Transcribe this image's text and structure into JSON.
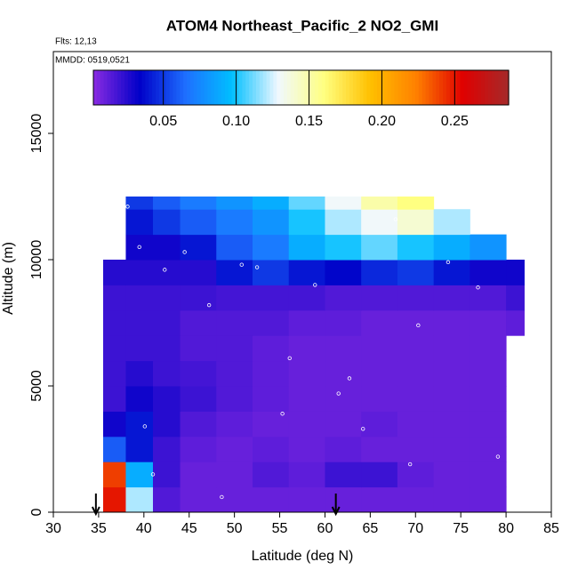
{
  "chart_data": {
    "type": "heatmap",
    "title": "ATOM4 Northeast_Pacific_2 NO2_GMI",
    "subtitle": "Flts: 12,13",
    "annotation": "MMDD: 0519,0521",
    "x_label": "Latitude (deg N)",
    "y_label": "Altitude (m)",
    "xlim": [
      30,
      85
    ],
    "ylim": [
      0,
      18240
    ],
    "xticks": [
      30,
      35,
      40,
      45,
      50,
      55,
      60,
      65,
      70,
      75,
      80,
      85
    ],
    "yticks": [
      0,
      5000,
      10000,
      15000
    ],
    "x_edges": [
      35.5,
      38,
      41,
      44,
      48,
      52,
      56,
      60,
      64,
      68,
      72,
      76,
      80,
      82
    ],
    "y_edges": [
      0,
      1000,
      2000,
      3000,
      4000,
      5000,
      6000,
      7000,
      8000,
      9000,
      10000,
      11000,
      12000,
      12500
    ],
    "z": [
      [
        0.25,
        0.12,
        0.015,
        0.01,
        0.01,
        0.01,
        0.01,
        0.01,
        0.01,
        0.01,
        0.01,
        0.01,
        null
      ],
      [
        0.24,
        0.09,
        0.02,
        0.01,
        0.01,
        0.015,
        0.012,
        0.02,
        0.02,
        0.012,
        0.01,
        0.01,
        null
      ],
      [
        0.06,
        0.04,
        0.02,
        0.012,
        0.01,
        0.012,
        0.01,
        0.012,
        0.01,
        0.01,
        0.01,
        0.01,
        null
      ],
      [
        0.03,
        0.04,
        0.025,
        0.015,
        0.012,
        0.01,
        0.01,
        0.01,
        0.012,
        0.01,
        0.01,
        0.01,
        null
      ],
      [
        0.02,
        0.03,
        0.025,
        0.02,
        0.015,
        0.012,
        0.01,
        0.01,
        0.01,
        0.01,
        0.01,
        0.01,
        null
      ],
      [
        0.02,
        0.025,
        0.02,
        0.018,
        0.015,
        0.012,
        0.01,
        0.01,
        0.01,
        0.01,
        0.01,
        0.01,
        null
      ],
      [
        0.02,
        0.02,
        0.02,
        0.015,
        0.015,
        0.012,
        0.01,
        0.01,
        0.01,
        0.01,
        0.01,
        0.01,
        null
      ],
      [
        0.02,
        0.02,
        0.02,
        0.015,
        0.015,
        0.015,
        0.012,
        0.012,
        0.01,
        0.01,
        0.01,
        0.01,
        0.012
      ],
      [
        0.02,
        0.02,
        0.02,
        0.02,
        0.018,
        0.018,
        0.018,
        0.015,
        0.015,
        0.015,
        0.015,
        0.015,
        0.02
      ],
      [
        0.025,
        0.025,
        0.025,
        0.025,
        0.04,
        0.05,
        0.04,
        0.035,
        0.045,
        0.05,
        0.04,
        0.03,
        0.03
      ],
      [
        null,
        0.03,
        0.03,
        0.04,
        0.06,
        0.07,
        0.09,
        0.1,
        0.11,
        0.1,
        0.09,
        0.08,
        null
      ],
      [
        null,
        0.04,
        0.05,
        0.06,
        0.07,
        0.08,
        0.1,
        0.12,
        0.13,
        0.14,
        0.12,
        null,
        null
      ],
      [
        null,
        0.05,
        0.06,
        0.07,
        0.08,
        0.09,
        0.11,
        0.13,
        0.15,
        0.16,
        null,
        null,
        null
      ]
    ],
    "clim": [
      0.002,
      0.287
    ],
    "colormap": [
      "#8a2be2",
      "#0000c8",
      "#1e6fff",
      "#00bfff",
      "#f0f8ff",
      "#ffff80",
      "#ffc000",
      "#ff8000",
      "#e00000",
      "#a52a2a"
    ],
    "colorbar_ticks": [
      0.05,
      {
        "value": 0.1,
        "label": "0.10"
      },
      0.15,
      {
        "value": 0.2,
        "label": "0.20"
      },
      0.25
    ],
    "points_x": [
      38.2,
      39.5,
      40.1,
      42.3,
      44.5,
      47.2,
      50.8,
      52.5,
      56.1,
      58.9,
      61.5,
      64.2,
      67.8,
      70.3,
      73.6,
      76.9,
      79.1,
      41.0,
      48.6,
      55.3,
      62.7,
      69.4
    ],
    "points_y": [
      12100,
      10500,
      3400,
      9600,
      10300,
      8200,
      9800,
      9700,
      6100,
      9000,
      4700,
      3300,
      11600,
      7400,
      9900,
      8900,
      2200,
      1500,
      600,
      3900,
      5300,
      1900
    ],
    "arrows_x": [
      34.7,
      61.2
    ]
  }
}
